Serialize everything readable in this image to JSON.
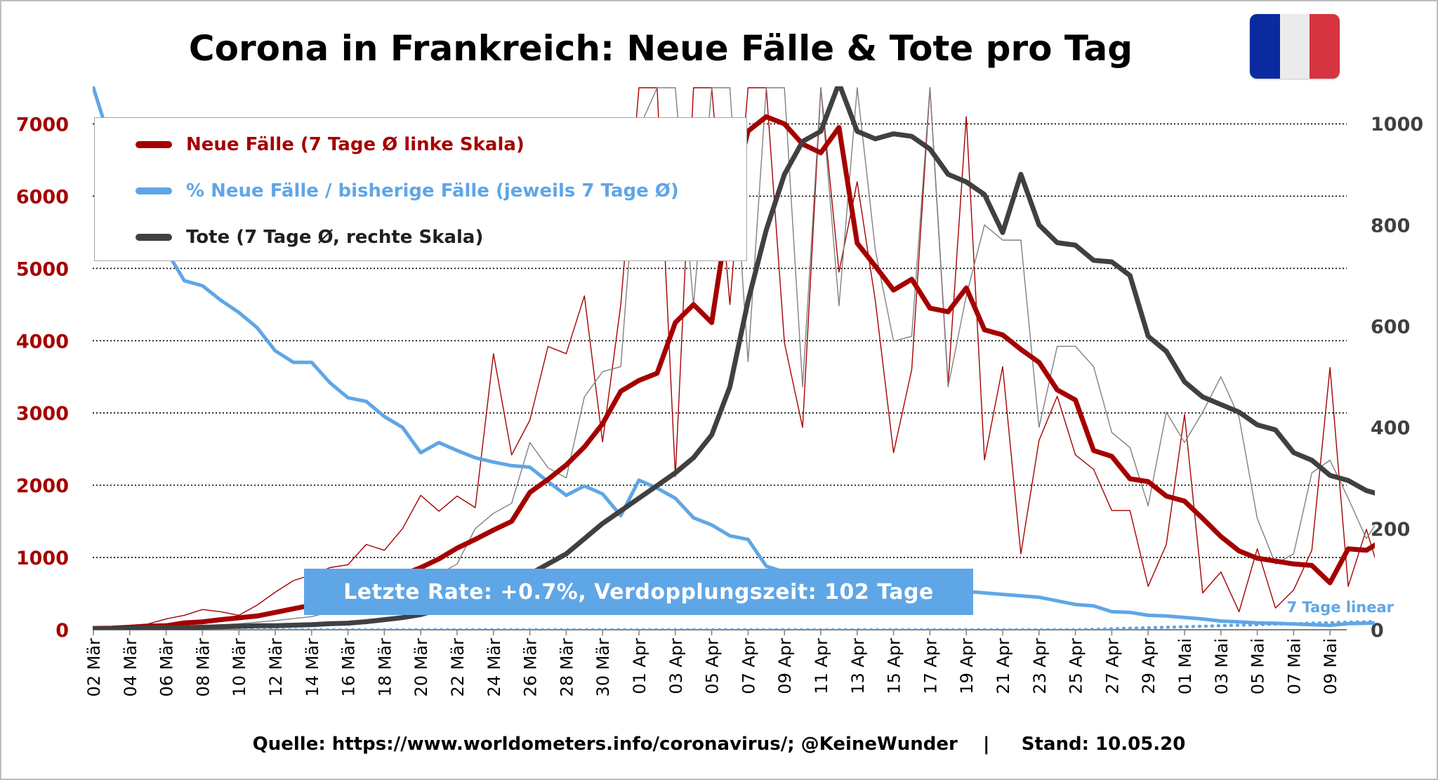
{
  "chart_data": {
    "type": "line",
    "title": "Corona in Frankreich: Neue Fälle & Tote pro Tag",
    "x_tick_labels": [
      "02 Mär",
      "04 Mär",
      "06 Mär",
      "08 Mär",
      "10 Mär",
      "12 Mär",
      "14 Mär",
      "16 Mär",
      "18 Mär",
      "20 Mär",
      "22 Mär",
      "24 Mär",
      "26 Mär",
      "28 Mär",
      "30 Mär",
      "01 Apr",
      "03 Apr",
      "05 Apr",
      "07 Apr",
      "09 Apr",
      "11 Apr",
      "13 Apr",
      "15 Apr",
      "17 Apr",
      "19 Apr",
      "21 Apr",
      "23 Apr",
      "25 Apr",
      "27 Apr",
      "29 Apr",
      "01 Mai",
      "03 Mai",
      "05 Mai",
      "07 Mai",
      "09 Mai"
    ],
    "y_left": {
      "ylim": [
        0,
        7500
      ],
      "ticks": [
        0,
        1000,
        2000,
        3000,
        4000,
        5000,
        6000,
        7000
      ],
      "color": "#a50000"
    },
    "y_right": {
      "ylim": [
        0,
        1071
      ],
      "ticks": [
        0,
        200,
        400,
        600,
        800,
        1000
      ],
      "color": "#404040"
    },
    "grid": "horizontal dotted",
    "legend": {
      "placement": "top-left",
      "items": [
        {
          "label": "Neue Fälle (7 Tage Ø linke Skala)",
          "color": "#a50000"
        },
        {
          "label": "% Neue Fälle / bisherige Fälle (jeweils 7 Tage Ø)",
          "color": "#5fa6e6"
        },
        {
          "label": "Tote (7 Tage Ø, rechte Skala)",
          "color": "#404040"
        }
      ]
    },
    "annotation_banner": "Letzte Rate: +0.7%, Verdopplungszeit: 102 Tage",
    "annotation_trend": "7 Tage linear",
    "series": [
      {
        "name": "Neue Fälle (7 Tage Ø linke Skala)",
        "axis": "left",
        "role": "avg",
        "color": "#a50000",
        "values": [
          18,
          22,
          35,
          50,
          55,
          95,
          110,
          140,
          165,
          190,
          240,
          290,
          340,
          400,
          460,
          560,
          680,
          760,
          860,
          980,
          1130,
          1250,
          1380,
          1500,
          1900,
          2080,
          2280,
          2530,
          2850,
          3300,
          3450,
          3550,
          4250,
          4500,
          4250,
          5900,
          6900,
          7100,
          7000,
          6720,
          6600,
          6950,
          5350,
          5030,
          4700,
          4850,
          4450,
          4400,
          4730,
          4150,
          4080,
          3880,
          3700,
          3320,
          3180,
          2480,
          2400,
          2090,
          2050,
          1850,
          1780,
          1540,
          1290,
          1090,
          990,
          950,
          910,
          890,
          650,
          1120,
          1100,
          1250,
          1170,
          1170
        ]
      },
      {
        "name": "",
        "axis": "left",
        "role": "daily",
        "color": "#a50000",
        "values": [
          20,
          30,
          60,
          80,
          150,
          200,
          280,
          250,
          200,
          340,
          520,
          680,
          760,
          860,
          900,
          1180,
          1100,
          1400,
          1860,
          1640,
          1850,
          1690,
          3820,
          2420,
          2900,
          3920,
          3820,
          4620,
          2600,
          4500,
          7500,
          7500,
          2120,
          7500,
          7500,
          4500,
          7500,
          7500,
          3970,
          2800,
          7500,
          4950,
          6200,
          4550,
          2450,
          3600,
          7500,
          3400,
          7100,
          2350,
          3640,
          1050,
          2620,
          3230,
          2420,
          2220,
          1650,
          1650,
          600,
          1180,
          2980,
          510,
          800,
          250,
          1120,
          300,
          550,
          1100,
          3630,
          600,
          1390,
          560,
          450,
          420
        ]
      },
      {
        "name": "% Neue Fälle / bisherige Fälle (jeweils 7 Tage Ø)",
        "axis": "left",
        "role": "pct",
        "color": "#5fa6e6",
        "values": [
          7500,
          6700,
          5950,
          5600,
          5250,
          4830,
          4760,
          4560,
          4390,
          4180,
          3860,
          3700,
          3700,
          3420,
          3210,
          3160,
          2950,
          2800,
          2450,
          2590,
          2480,
          2380,
          2320,
          2270,
          2250,
          2050,
          1860,
          1990,
          1880,
          1580,
          2070,
          1960,
          1820,
          1550,
          1450,
          1300,
          1250,
          880,
          800,
          720,
          690,
          620,
          660,
          640,
          620,
          600,
          580,
          560,
          530,
          510,
          490,
          470,
          450,
          400,
          350,
          330,
          250,
          240,
          200,
          190,
          170,
          150,
          120,
          110,
          95,
          90,
          80,
          70,
          60,
          85,
          90,
          100,
          95,
          80
        ]
      },
      {
        "name": "Tote (7 Tage Ø, rechte Skala)",
        "axis": "right",
        "role": "avg",
        "color": "#404040",
        "values": [
          2,
          2,
          3,
          4,
          4,
          4,
          5,
          6,
          7,
          8,
          8,
          9,
          10,
          12,
          13,
          16,
          20,
          24,
          30,
          40,
          48,
          60,
          75,
          92,
          110,
          130,
          150,
          180,
          210,
          235,
          260,
          285,
          310,
          340,
          385,
          480,
          650,
          790,
          900,
          965,
          985,
          1080,
          985,
          970,
          980,
          975,
          950,
          900,
          885,
          860,
          785,
          900,
          800,
          765,
          760,
          730,
          727,
          700,
          580,
          550,
          490,
          460,
          445,
          430,
          405,
          395,
          350,
          335,
          305,
          295,
          275,
          265,
          250,
          235,
          230
        ]
      },
      {
        "name": "",
        "axis": "right",
        "role": "daily",
        "color": "#808080",
        "values": [
          1,
          2,
          3,
          4,
          5,
          7,
          8,
          10,
          12,
          15,
          18,
          22,
          26,
          35,
          40,
          50,
          65,
          80,
          90,
          110,
          130,
          200,
          230,
          250,
          370,
          320,
          300,
          460,
          510,
          520,
          990,
          1071,
          1071,
          640,
          1071,
          1071,
          530,
          1071,
          1071,
          480,
          1071,
          640,
          1071,
          750,
          570,
          580,
          1071,
          480,
          660,
          800,
          770,
          770,
          400,
          560,
          560,
          520,
          390,
          360,
          245,
          430,
          370,
          430,
          500,
          420,
          220,
          130,
          150,
          310,
          335,
          260,
          180,
          236,
          80,
          73
        ]
      },
      {
        "name": "",
        "axis": "right",
        "role": "trend",
        "color": "#5fa6e6",
        "values": [
          0,
          0,
          0,
          0,
          0,
          0,
          0,
          0,
          0,
          0,
          0,
          0,
          0,
          0,
          0,
          0,
          0,
          0,
          0,
          0,
          0,
          0,
          0,
          0,
          0,
          0,
          0,
          0,
          0,
          0,
          0,
          0,
          0,
          0,
          0,
          0,
          0,
          0,
          0,
          0,
          0,
          0,
          0,
          0,
          0,
          0,
          0,
          0,
          0,
          0,
          0,
          0,
          0,
          0,
          0,
          1,
          2,
          3,
          4,
          5,
          6,
          7,
          8,
          9,
          10,
          11,
          12,
          13,
          14,
          15,
          16,
          17,
          18,
          19
        ]
      }
    ]
  },
  "footer": {
    "text": "Quelle: https://www.worldometers.info/coronavirus/; @KeineWunder    |     Stand: 10.05.20"
  },
  "flag": {
    "colors": [
      "#0b2aa0",
      "#ebebeb",
      "#d6343f"
    ]
  }
}
